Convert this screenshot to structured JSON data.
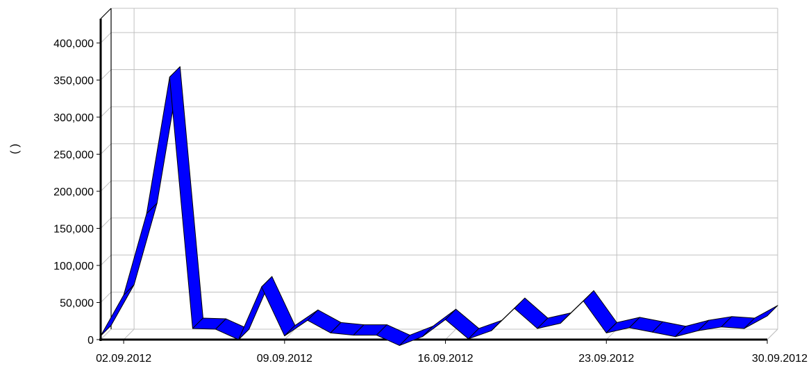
{
  "chart_data": {
    "type": "area",
    "style": "3d-ribbon",
    "title": "",
    "xlabel": "",
    "ylabel": "(          )",
    "ylim": [
      0,
      430000
    ],
    "grid": true,
    "legend": "none",
    "colors": {
      "series": "#0000ff",
      "series_dark": "#000080",
      "grid": "#c0c0c0",
      "axis": "#000000"
    },
    "yticks": [
      0,
      50000,
      100000,
      150000,
      200000,
      250000,
      300000,
      350000,
      400000
    ],
    "ytick_labels": [
      "0",
      "50,000",
      "100,000",
      "150,000",
      "200,000",
      "250,000",
      "300,000",
      "350,000",
      "400,000"
    ],
    "xtick_labels": [
      "02.09.2012",
      "09.09.2012",
      "16.09.2012",
      "23.09.2012",
      "30.09.2012"
    ],
    "x": [
      "01.09.2012",
      "02.09.2012",
      "03.09.2012",
      "04.09.2012",
      "05.09.2012",
      "06.09.2012",
      "07.09.2012",
      "08.09.2012",
      "09.09.2012",
      "10.09.2012",
      "11.09.2012",
      "12.09.2012",
      "13.09.2012",
      "14.09.2012",
      "15.09.2012",
      "16.09.2012",
      "17.09.2012",
      "18.09.2012",
      "19.09.2012",
      "20.09.2012",
      "21.09.2012",
      "22.09.2012",
      "23.09.2012",
      "24.09.2012",
      "25.09.2012",
      "26.09.2012",
      "27.09.2012",
      "28.09.2012",
      "29.09.2012",
      "30.09.2012"
    ],
    "series": [
      {
        "values": [
          5000,
          60000,
          170000,
          354000,
          15000,
          14000,
          0,
          71000,
          5000,
          26000,
          9000,
          6000,
          6000,
          -8000,
          4000,
          27000,
          1000,
          12000,
          42000,
          15000,
          22000,
          52000,
          9000,
          16000,
          10000,
          4000,
          12000,
          17000,
          15000,
          32000
        ]
      }
    ]
  }
}
